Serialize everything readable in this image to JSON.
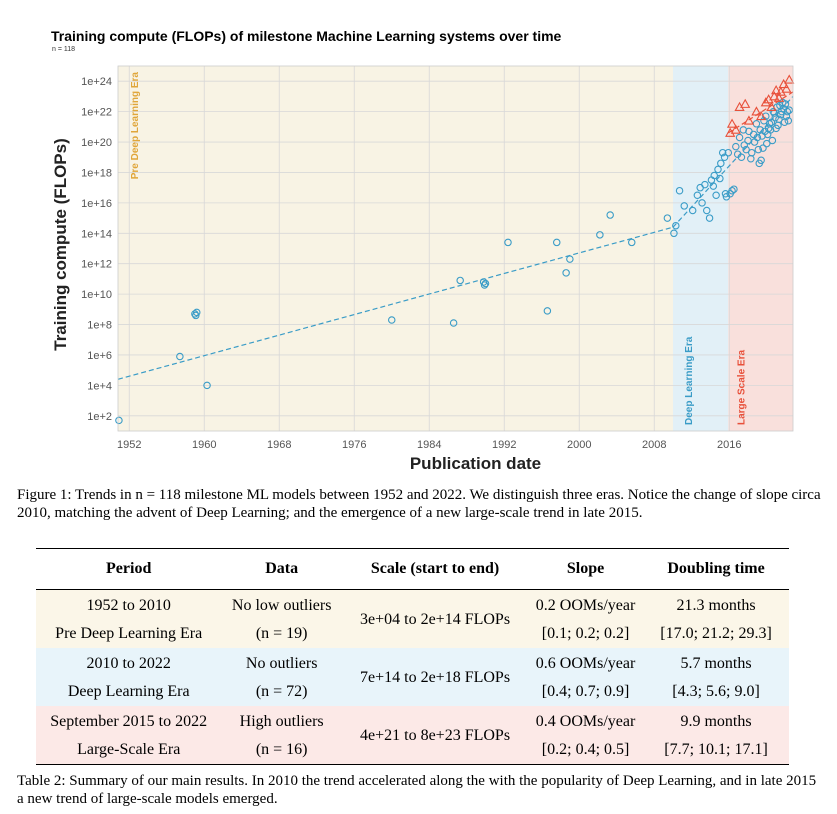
{
  "figure": {
    "title": "Training compute (FLOPs) of milestone Machine Learning systems over time",
    "n_label": "n = 118",
    "caption": "Figure 1: Trends in n = 118 milestone ML models between 1952 and 2022. We distinguish three eras. Notice the change of slope circa 2010, matching the advent of Deep Learning; and the emergence of a new large-scale trend in late 2015."
  },
  "chart_data": {
    "type": "scatter",
    "title": "Training compute (FLOPs) of milestone Machine Learning systems over time",
    "xlabel": "Publication date",
    "ylabel": "Training compute (FLOPs)",
    "x_scale": "time (year)",
    "y_scale": "log10",
    "xlim": [
      1950.8,
      2022.8
    ],
    "ylim_log10": [
      1.0,
      25.0
    ],
    "x_ticks": [
      1952,
      1960,
      1968,
      1976,
      1984,
      1992,
      2000,
      2008,
      2016
    ],
    "y_ticks": [
      "1e+2",
      "1e+4",
      "1e+6",
      "1e+8",
      "1e+10",
      "1e+12",
      "1e+14",
      "1e+16",
      "1e+18",
      "1e+20",
      "1e+22",
      "1e+24"
    ],
    "grid": true,
    "colors": {
      "pre_dl_bg": "#f8f3e4",
      "dl_bg": "#e2f0f7",
      "ls_bg": "#f9e0dc",
      "blue": "#3a9cc7",
      "orange": "#e0a63a",
      "red": "#e8503a",
      "grid": "#d8d8d8"
    },
    "eras": [
      {
        "name": "Pre Deep Learning Era",
        "start": 1950.8,
        "end": 2010.0
      },
      {
        "name": "Deep Learning Era",
        "start": 2010.0,
        "end": 2015.9
      },
      {
        "name": "Large Scale Era",
        "start": 2015.9,
        "end": 2022.8
      }
    ],
    "trendlines": [
      {
        "era": "Pre Deep Learning Era",
        "x": [
          1950.8,
          2010.0
        ],
        "y_log10": [
          4.4,
          14.4
        ]
      },
      {
        "era": "Deep Learning Era",
        "x": [
          2010.0,
          2022.8
        ],
        "y_log10": [
          14.4,
          23.0
        ]
      },
      {
        "era": "Large Scale Era",
        "x": [
          2015.9,
          2022.8
        ],
        "y_log10": [
          20.6,
          23.3
        ]
      }
    ],
    "series": [
      {
        "marker": "circle",
        "points": [
          [
            1950.9,
            1.7
          ],
          [
            1957.4,
            5.9
          ],
          [
            1959.0,
            8.7
          ],
          [
            1959.1,
            8.6
          ],
          [
            1959.2,
            8.8
          ],
          [
            1960.3,
            4.0
          ],
          [
            1980.0,
            8.3
          ],
          [
            1986.6,
            8.1
          ],
          [
            1987.3,
            10.9
          ],
          [
            1989.8,
            10.8
          ],
          [
            1989.9,
            10.6
          ],
          [
            1990.0,
            10.7
          ],
          [
            1992.4,
            13.4
          ],
          [
            1996.6,
            8.9
          ],
          [
            1997.6,
            13.4
          ],
          [
            1998.6,
            11.4
          ],
          [
            1999.0,
            12.3
          ],
          [
            2002.2,
            13.9
          ],
          [
            2003.3,
            15.2
          ],
          [
            2005.6,
            13.4
          ],
          [
            2009.4,
            15.0
          ],
          [
            2010.1,
            14.0
          ],
          [
            2010.3,
            14.5
          ],
          [
            2010.7,
            16.8
          ],
          [
            2011.2,
            15.8
          ],
          [
            2012.1,
            15.5
          ],
          [
            2012.6,
            16.5
          ],
          [
            2012.9,
            17.0
          ],
          [
            2013.1,
            16.0
          ],
          [
            2013.4,
            17.2
          ],
          [
            2013.6,
            15.5
          ],
          [
            2013.9,
            15.0
          ],
          [
            2014.1,
            17.5
          ],
          [
            2014.3,
            17.1
          ],
          [
            2014.4,
            17.8
          ],
          [
            2014.6,
            16.5
          ],
          [
            2014.8,
            18.2
          ],
          [
            2015.0,
            17.6
          ],
          [
            2015.1,
            18.6
          ],
          [
            2015.3,
            19.3
          ],
          [
            2015.5,
            19.0
          ],
          [
            2015.6,
            16.6
          ],
          [
            2015.7,
            16.4
          ],
          [
            2015.9,
            19.3
          ],
          [
            2016.1,
            16.6
          ],
          [
            2016.3,
            16.8
          ],
          [
            2016.5,
            16.9
          ],
          [
            2016.7,
            19.7
          ],
          [
            2016.9,
            19.2
          ],
          [
            2017.1,
            20.3
          ],
          [
            2017.3,
            19.0
          ],
          [
            2017.5,
            20.8
          ],
          [
            2017.6,
            19.8
          ],
          [
            2017.8,
            19.5
          ],
          [
            2018.0,
            20.1
          ],
          [
            2018.1,
            20.7
          ],
          [
            2018.3,
            18.9
          ],
          [
            2018.4,
            19.3
          ],
          [
            2018.6,
            20.5
          ],
          [
            2018.7,
            20.0
          ],
          [
            2018.9,
            21.2
          ],
          [
            2019.0,
            20.3
          ],
          [
            2019.1,
            19.5
          ],
          [
            2019.2,
            18.6
          ],
          [
            2019.3,
            20.8
          ],
          [
            2019.4,
            18.8
          ],
          [
            2019.5,
            20.4
          ],
          [
            2019.6,
            19.6
          ],
          [
            2019.7,
            21.4
          ],
          [
            2019.8,
            20.7
          ],
          [
            2019.9,
            21.7
          ],
          [
            2020.0,
            19.9
          ],
          [
            2020.1,
            20.5
          ],
          [
            2020.2,
            20.9
          ],
          [
            2020.3,
            21.2
          ],
          [
            2020.4,
            20.8
          ],
          [
            2020.5,
            21.3
          ],
          [
            2020.6,
            20.1
          ],
          [
            2020.7,
            22.0
          ],
          [
            2020.8,
            21.9
          ],
          [
            2020.9,
            21.6
          ],
          [
            2021.0,
            20.9
          ],
          [
            2021.1,
            22.3
          ],
          [
            2021.2,
            21.1
          ],
          [
            2021.3,
            21.5
          ],
          [
            2021.4,
            22.4
          ],
          [
            2021.5,
            21.8
          ],
          [
            2021.6,
            22.0
          ],
          [
            2021.7,
            22.6
          ],
          [
            2021.8,
            22.2
          ],
          [
            2021.9,
            21.3
          ],
          [
            2022.0,
            22.5
          ],
          [
            2022.1,
            21.7
          ],
          [
            2022.2,
            22.0
          ],
          [
            2022.3,
            21.4
          ],
          [
            2022.4,
            22.1
          ]
        ]
      },
      {
        "marker": "triangle",
        "points": [
          [
            2016.1,
            20.6
          ],
          [
            2016.3,
            21.2
          ],
          [
            2016.7,
            20.8
          ],
          [
            2017.1,
            22.3
          ],
          [
            2017.7,
            22.5
          ],
          [
            2018.1,
            21.4
          ],
          [
            2018.9,
            22.0
          ],
          [
            2019.4,
            21.7
          ],
          [
            2019.9,
            22.6
          ],
          [
            2020.2,
            22.8
          ],
          [
            2020.5,
            22.3
          ],
          [
            2020.8,
            23.0
          ],
          [
            2021.0,
            23.4
          ],
          [
            2021.3,
            22.9
          ],
          [
            2021.5,
            23.3
          ],
          [
            2021.8,
            23.8
          ],
          [
            2022.1,
            23.5
          ],
          [
            2022.4,
            24.1
          ]
        ]
      }
    ]
  },
  "table": {
    "headers": [
      "Period",
      "Data",
      "Scale (start to end)",
      "Slope",
      "Doubling time"
    ],
    "rows": [
      {
        "period_1": "1952 to 2010",
        "period_2": "Pre Deep Learning Era",
        "data_1": "No low outliers",
        "data_2": "(n = 19)",
        "scale": "3e+04 to 2e+14 FLOPs",
        "slope_1": "0.2 OOMs/year",
        "slope_2": "[0.1; 0.2; 0.2]",
        "doubling_1": "21.3 months",
        "doubling_2": "[17.0; 21.2; 29.3]"
      },
      {
        "period_1": "2010 to 2022",
        "period_2": "Deep Learning Era",
        "data_1": "No outliers",
        "data_2": "(n = 72)",
        "scale": "7e+14 to 2e+18 FLOPs",
        "slope_1": "0.6 OOMs/year",
        "slope_2": "[0.4; 0.7; 0.9]",
        "doubling_1": "5.7 months",
        "doubling_2": "[4.3; 5.6; 9.0]"
      },
      {
        "period_1": "September 2015 to 2022",
        "period_2": "Large-Scale Era",
        "data_1": "High outliers",
        "data_2": "(n = 16)",
        "scale": "4e+21 to 8e+23 FLOPs",
        "slope_1": "0.4 OOMs/year",
        "slope_2": "[0.2; 0.4; 0.5]",
        "doubling_1": "9.9 months",
        "doubling_2": "[7.7; 10.1; 17.1]"
      }
    ],
    "caption": "Table 2: Summary of our main results. In 2010 the trend accelerated along the with the popularity of Deep Learning, and in late 2015 a new trend of large-scale models emerged."
  }
}
